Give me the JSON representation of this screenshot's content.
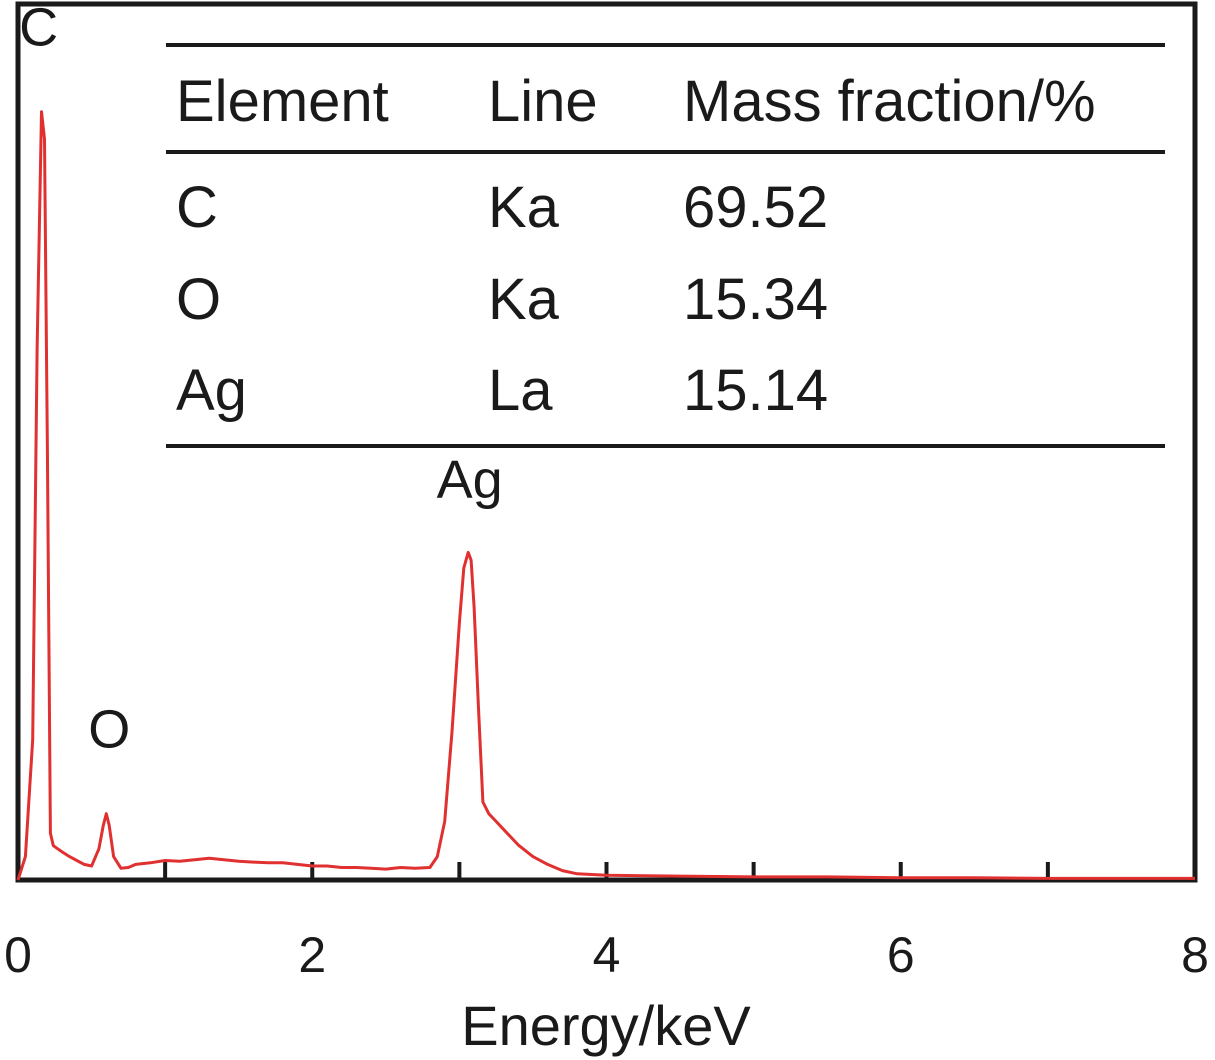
{
  "chart_data": {
    "type": "line",
    "title": "",
    "xlabel": "Energy/keV",
    "ylabel": "",
    "xlim": [
      0,
      8
    ],
    "ylim": [
      0,
      1
    ],
    "x_ticks": [
      "0",
      "2",
      "4",
      "6",
      "8"
    ],
    "x_minor_ticks": [
      1,
      3,
      5,
      7
    ],
    "y_ticks_visible": false,
    "grid": false,
    "line_color": "#e03030",
    "series": [
      {
        "name": "",
        "x": [
          0.0,
          0.05,
          0.1,
          0.13,
          0.16,
          0.18,
          0.2,
          0.22,
          0.24,
          0.27,
          0.3,
          0.35,
          0.4,
          0.45,
          0.5,
          0.55,
          0.58,
          0.6,
          0.62,
          0.65,
          0.7,
          0.75,
          0.8,
          0.9,
          1.0,
          1.1,
          1.2,
          1.3,
          1.4,
          1.5,
          1.6,
          1.7,
          1.8,
          1.9,
          2.0,
          2.1,
          2.2,
          2.3,
          2.4,
          2.5,
          2.6,
          2.7,
          2.8,
          2.85,
          2.9,
          2.95,
          3.0,
          3.03,
          3.06,
          3.08,
          3.1,
          3.13,
          3.16,
          3.2,
          3.25,
          3.3,
          3.4,
          3.5,
          3.6,
          3.7,
          3.8,
          3.9,
          4.0,
          4.5,
          5.0,
          5.5,
          6.0,
          6.5,
          7.0,
          7.5,
          8.0
        ],
        "y": [
          0.0,
          0.03,
          0.18,
          0.68,
          0.985,
          0.95,
          0.55,
          0.06,
          0.044,
          0.04,
          0.036,
          0.03,
          0.025,
          0.02,
          0.018,
          0.04,
          0.07,
          0.085,
          0.07,
          0.03,
          0.015,
          0.016,
          0.02,
          0.022,
          0.025,
          0.024,
          0.026,
          0.028,
          0.026,
          0.024,
          0.023,
          0.022,
          0.022,
          0.02,
          0.018,
          0.018,
          0.016,
          0.016,
          0.015,
          0.014,
          0.016,
          0.015,
          0.016,
          0.03,
          0.075,
          0.19,
          0.33,
          0.4,
          0.42,
          0.41,
          0.35,
          0.22,
          0.1,
          0.085,
          0.075,
          0.065,
          0.045,
          0.03,
          0.02,
          0.012,
          0.008,
          0.007,
          0.006,
          0.005,
          0.004,
          0.004,
          0.003,
          0.003,
          0.002,
          0.002,
          0.002
        ]
      }
    ],
    "annotations": [
      {
        "text": "C",
        "x": 0.14,
        "y": 1.07
      },
      {
        "text": "O",
        "x": 0.62,
        "y": 0.17
      },
      {
        "text": "Ag",
        "x": 3.07,
        "y": 0.49
      }
    ],
    "inset_table": {
      "headers": [
        "Element",
        "Line",
        "Mass fraction/%"
      ],
      "rows": [
        [
          "C",
          "Ka",
          "69.52"
        ],
        [
          "O",
          "Ka",
          "15.34"
        ],
        [
          "Ag",
          "La",
          "15.14"
        ]
      ]
    }
  }
}
